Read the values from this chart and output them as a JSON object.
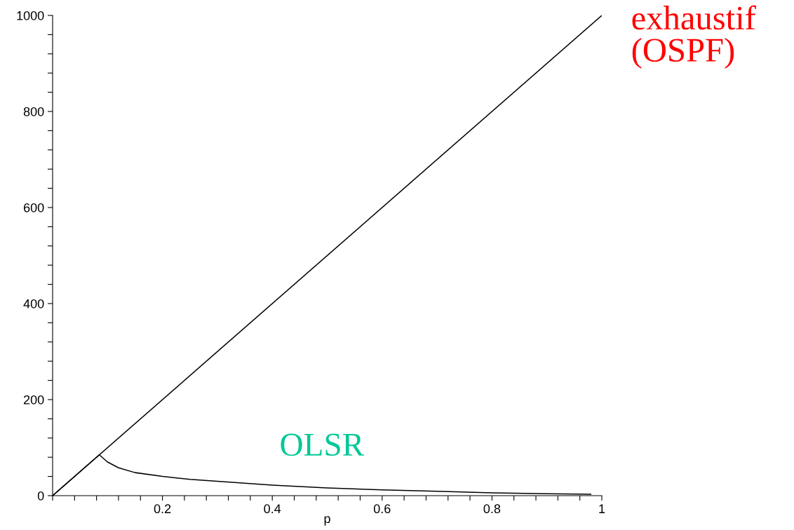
{
  "chart_data": {
    "type": "line",
    "xlabel": "p",
    "series": [
      {
        "name": "exhaustif\n(OSPF)",
        "color": "#000000",
        "x": [
          0,
          1
        ],
        "values": [
          0,
          1000
        ]
      },
      {
        "name": "OLSR",
        "color": "#000000",
        "x": [
          0,
          0.085,
          0.1,
          0.12,
          0.15,
          0.2,
          0.25,
          0.3,
          0.4,
          0.5,
          0.6,
          0.7,
          0.8,
          0.9,
          0.98
        ],
        "values": [
          0,
          85,
          70,
          58,
          48,
          40,
          34,
          30,
          22,
          16,
          12,
          9,
          6,
          4,
          3
        ]
      }
    ],
    "xlim": [
      0,
      1
    ],
    "ylim": [
      0,
      1000
    ],
    "xticks": [
      {
        "value": 0,
        "label": null
      },
      {
        "value": 0.04,
        "label": null
      },
      {
        "value": 0.08,
        "label": null
      },
      {
        "value": 0.12,
        "label": null
      },
      {
        "value": 0.16,
        "label": null
      },
      0.2,
      {
        "value": 0.24,
        "label": null
      },
      {
        "value": 0.28,
        "label": null
      },
      {
        "value": 0.32,
        "label": null
      },
      {
        "value": 0.36,
        "label": null
      },
      0.4,
      {
        "value": 0.44,
        "label": null
      },
      {
        "value": 0.48,
        "label": null
      },
      {
        "value": 0.52,
        "label": null
      },
      {
        "value": 0.56,
        "label": null
      },
      0.6,
      {
        "value": 0.64,
        "label": null
      },
      {
        "value": 0.68,
        "label": null
      },
      {
        "value": 0.72,
        "label": null
      },
      {
        "value": 0.76,
        "label": null
      },
      0.8,
      {
        "value": 0.84,
        "label": null
      },
      {
        "value": 0.88,
        "label": null
      },
      {
        "value": 0.92,
        "label": null
      },
      {
        "value": 0.96,
        "label": null
      },
      1
    ],
    "yticks": [
      0,
      {
        "value": 40,
        "label": null
      },
      {
        "value": 80,
        "label": null
      },
      {
        "value": 120,
        "label": null
      },
      {
        "value": 160,
        "label": null
      },
      200,
      {
        "value": 240,
        "label": null
      },
      {
        "value": 280,
        "label": null
      },
      {
        "value": 320,
        "label": null
      },
      {
        "value": 360,
        "label": null
      },
      400,
      {
        "value": 440,
        "label": null
      },
      {
        "value": 480,
        "label": null
      },
      {
        "value": 520,
        "label": null
      },
      {
        "value": 560,
        "label": null
      },
      600,
      {
        "value": 640,
        "label": null
      },
      {
        "value": 680,
        "label": null
      },
      {
        "value": 720,
        "label": null
      },
      {
        "value": 760,
        "label": null
      },
      800,
      {
        "value": 840,
        "label": null
      },
      {
        "value": 880,
        "label": null
      },
      {
        "value": 920,
        "label": null
      },
      {
        "value": 960,
        "label": null
      },
      1000
    ],
    "grid": false,
    "legend": false,
    "marker": "none",
    "line_style": "solid"
  }
}
